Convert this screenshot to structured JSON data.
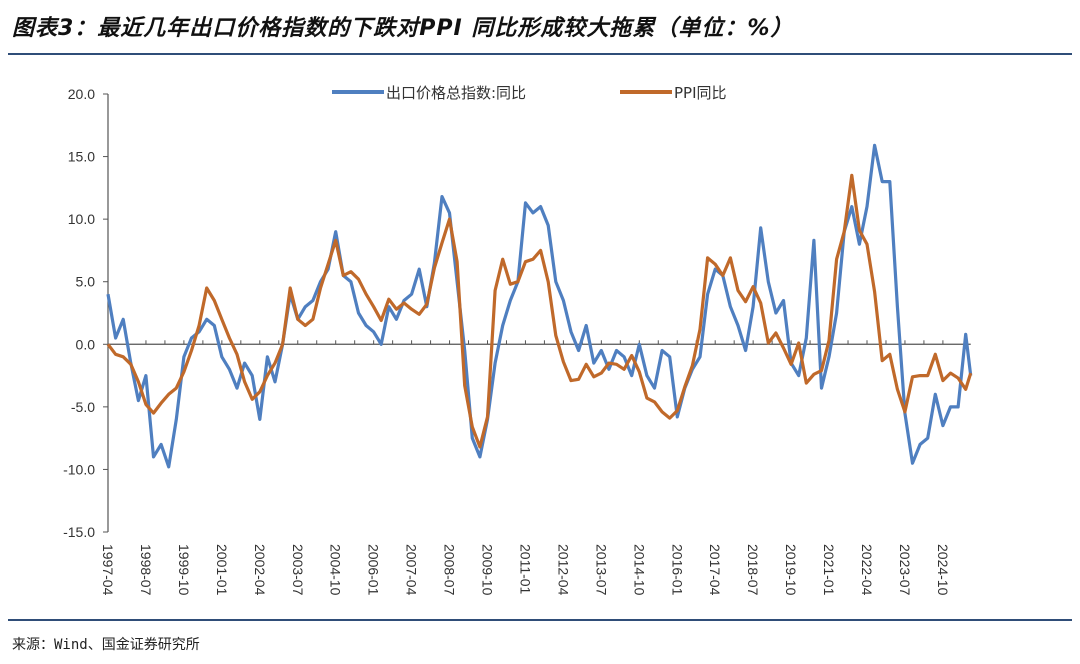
{
  "title": "图表3：最近几年出口价格指数的下跌对PPI 同比形成较大拖累（单位：%）",
  "source": "来源：Wind、国金证券研究所",
  "chart_data": {
    "type": "line",
    "title": "图表3：最近几年出口价格指数的下跌对PPI 同比形成较大拖累（单位：%）",
    "xlabel": "",
    "ylabel": "",
    "ylim": [
      -15,
      20
    ],
    "yticks": [
      "20.0",
      "15.0",
      "10.0",
      "5.0",
      "0.0",
      "-5.0",
      "-10.0",
      "-15.0"
    ],
    "xticks": [
      "1997-04",
      "1998-07",
      "1999-10",
      "2001-01",
      "2002-04",
      "2003-07",
      "2004-10",
      "2006-01",
      "2007-04",
      "2008-07",
      "2009-10",
      "2011-01",
      "2012-04",
      "2013-07",
      "2014-10",
      "2016-01",
      "2017-04",
      "2018-07",
      "2019-10",
      "2021-01",
      "2022-04",
      "2023-07",
      "2024-10"
    ],
    "legend_position": "top-center",
    "grid": false,
    "x": [
      "1997-04",
      "1997-07",
      "1997-10",
      "1998-01",
      "1998-04",
      "1998-07",
      "1998-10",
      "1999-01",
      "1999-04",
      "1999-07",
      "1999-10",
      "2000-01",
      "2000-04",
      "2000-07",
      "2000-10",
      "2001-01",
      "2001-04",
      "2001-07",
      "2001-10",
      "2002-01",
      "2002-04",
      "2002-07",
      "2002-10",
      "2003-01",
      "2003-04",
      "2003-07",
      "2003-10",
      "2004-01",
      "2004-04",
      "2004-07",
      "2004-10",
      "2005-01",
      "2005-04",
      "2005-07",
      "2005-10",
      "2006-01",
      "2006-04",
      "2006-07",
      "2006-10",
      "2007-01",
      "2007-04",
      "2007-07",
      "2007-10",
      "2008-01",
      "2008-04",
      "2008-07",
      "2008-10",
      "2009-01",
      "2009-04",
      "2009-07",
      "2009-10",
      "2010-01",
      "2010-04",
      "2010-07",
      "2010-10",
      "2011-01",
      "2011-04",
      "2011-07",
      "2011-10",
      "2012-01",
      "2012-04",
      "2012-07",
      "2012-10",
      "2013-01",
      "2013-04",
      "2013-07",
      "2013-10",
      "2014-01",
      "2014-04",
      "2014-07",
      "2014-10",
      "2015-01",
      "2015-04",
      "2015-07",
      "2015-10",
      "2016-01",
      "2016-04",
      "2016-07",
      "2016-10",
      "2017-01",
      "2017-04",
      "2017-07",
      "2017-10",
      "2018-01",
      "2018-04",
      "2018-07",
      "2018-10",
      "2019-01",
      "2019-04",
      "2019-07",
      "2019-10",
      "2020-01",
      "2020-04",
      "2020-07",
      "2020-10",
      "2021-01",
      "2021-04",
      "2021-07",
      "2021-10",
      "2022-01",
      "2022-04",
      "2022-07",
      "2022-10",
      "2023-01",
      "2023-04",
      "2023-07",
      "2023-10",
      "2024-01",
      "2024-04",
      "2024-07",
      "2024-10",
      "2025-01",
      "2025-04",
      "2025-07",
      "2025-09"
    ],
    "series": [
      {
        "name": "出口价格总指数:同比",
        "color": "#4f7fc0",
        "values": [
          4.0,
          0.5,
          2.0,
          -1.5,
          -4.5,
          -2.5,
          -9.0,
          -8.0,
          -9.8,
          -6.0,
          -1.0,
          0.5,
          1.0,
          2.0,
          1.5,
          -1.0,
          -2.0,
          -3.5,
          -1.5,
          -2.5,
          -6.0,
          -1.0,
          -3.0,
          0.0,
          4.0,
          2.0,
          3.0,
          3.5,
          5.0,
          6.0,
          9.0,
          5.5,
          5.0,
          2.5,
          1.5,
          1.0,
          0.0,
          3.0,
          2.0,
          3.5,
          4.0,
          6.0,
          3.0,
          6.5,
          11.8,
          10.5,
          5.0,
          -0.5,
          -7.5,
          -9.0,
          -6.0,
          -1.5,
          1.5,
          3.5,
          5.0,
          11.3,
          10.5,
          11.0,
          9.5,
          5.0,
          3.5,
          1.0,
          -0.5,
          1.5,
          -1.5,
          -0.5,
          -2.0,
          -0.5,
          -1.0,
          -2.5,
          0.0,
          -2.5,
          -3.5,
          -0.5,
          -1.0,
          -5.8,
          -3.5,
          -2.0,
          -1.0,
          4.0,
          6.0,
          5.5,
          3.0,
          1.5,
          -0.5,
          3.0,
          9.3,
          5.0,
          2.5,
          3.5,
          -1.5,
          -2.5,
          0.5,
          8.3,
          -3.5,
          -1.0,
          2.5,
          9.0,
          11.0,
          8.0,
          11.0,
          15.9,
          13.0,
          13.0,
          3.0,
          -5.5,
          -9.5,
          -8.0,
          -7.5,
          -4.0,
          -6.5,
          -5.0,
          -5.0,
          0.8,
          -2.5
        ]
      },
      {
        "name": "PPI同比",
        "color": "#c0692a",
        "values": [
          0.0,
          -0.8,
          -1.0,
          -1.6,
          -3.0,
          -4.8,
          -5.5,
          -4.7,
          -4.0,
          -3.5,
          -2.2,
          -0.5,
          1.5,
          4.5,
          3.5,
          2.0,
          0.5,
          -0.8,
          -3.0,
          -4.4,
          -3.8,
          -2.5,
          -1.5,
          0.0,
          4.5,
          2.0,
          1.5,
          2.0,
          4.5,
          6.4,
          8.3,
          5.5,
          5.8,
          5.2,
          4.0,
          3.0,
          1.9,
          3.6,
          2.8,
          3.3,
          2.8,
          2.4,
          3.2,
          6.1,
          8.1,
          10.0,
          6.6,
          -3.3,
          -6.6,
          -8.2,
          -5.8,
          4.3,
          6.8,
          4.8,
          5.0,
          6.6,
          6.8,
          7.5,
          5.0,
          0.7,
          -1.4,
          -2.9,
          -2.8,
          -1.6,
          -2.6,
          -2.3,
          -1.5,
          -1.6,
          -2.0,
          -0.9,
          -2.2,
          -4.3,
          -4.6,
          -5.4,
          -5.9,
          -5.3,
          -3.4,
          -1.7,
          1.2,
          6.9,
          6.4,
          5.5,
          6.9,
          4.3,
          3.4,
          4.6,
          3.3,
          0.1,
          0.9,
          -0.3,
          -1.6,
          0.1,
          -3.1,
          -2.4,
          -2.1,
          0.3,
          6.8,
          9.0,
          13.5,
          9.1,
          8.0,
          4.2,
          -1.3,
          -0.8,
          -3.6,
          -5.4,
          -2.6,
          -2.5,
          -2.5,
          -0.8,
          -2.9,
          -2.3,
          -2.7,
          -3.6,
          -2.3
        ]
      }
    ]
  }
}
